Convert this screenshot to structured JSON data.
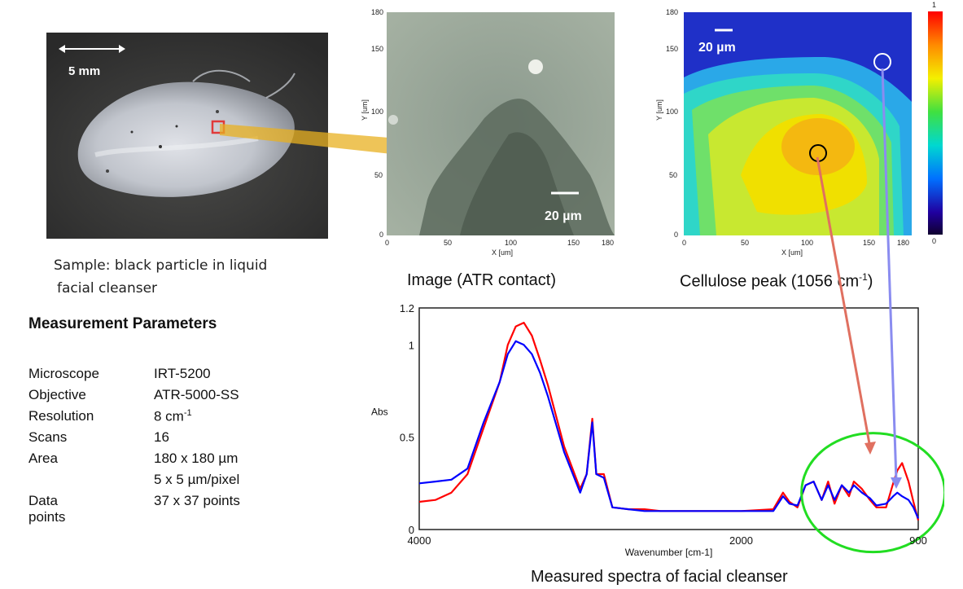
{
  "photo": {
    "scale_label": "5 mm",
    "caption_line1": "Sample: black particle in liquid",
    "caption_line2": "facial cleanser"
  },
  "atr_image": {
    "caption": "Image (ATR contact)",
    "scale_label": "20 µm",
    "x_label": "X [um]",
    "y_label": "Y [um]",
    "x_ticks": [
      "0",
      "50",
      "100",
      "150",
      "180"
    ],
    "y_ticks": [
      "0",
      "50",
      "100",
      "150",
      "180"
    ]
  },
  "cellulose_map": {
    "caption_main": "Cellulose peak (1056 cm",
    "caption_sup": "-1",
    "caption_end": ")",
    "scale_label": "20 µm",
    "x_label": "X [um]",
    "y_label": "Y [um]",
    "x_ticks": [
      "0",
      "50",
      "100",
      "150",
      "180"
    ],
    "y_ticks": [
      "0",
      "50",
      "100",
      "150",
      "180"
    ],
    "colorbar_max": "1",
    "colorbar_min": "0"
  },
  "parameters": {
    "heading": "Measurement Parameters",
    "rows": [
      {
        "name": "Microscope",
        "value": "IRT-5200"
      },
      {
        "name": "Objective",
        "value": "ATR-5000-SS"
      },
      {
        "name": "Resolution",
        "value": "8 cm",
        "sup": "-1"
      },
      {
        "name": "Scans",
        "value": "16"
      },
      {
        "name": "Area",
        "value": "180 x 180 µm"
      },
      {
        "name": "",
        "value": "5 x 5 µm/pixel"
      },
      {
        "name": "Data points",
        "value": "37 x 37 points"
      }
    ]
  },
  "spectrum": {
    "caption": "Measured spectra of  facial cleanser",
    "colors": {
      "red_series": "#ff0000",
      "blue_series": "#0000ff",
      "highlight": "#22dd22"
    },
    "chart_data": {
      "type": "line",
      "xlabel": "Wavenumber [cm-1]",
      "ylabel": "Abs",
      "x_reversed": true,
      "xlim": [
        4000,
        900
      ],
      "ylim": [
        0,
        1.2
      ],
      "x_ticks": [
        "4000",
        "2000",
        "900"
      ],
      "y_ticks": [
        "0",
        "0.5",
        "1",
        "1.2"
      ],
      "series": [
        {
          "x": [
            4000,
            3900,
            3800,
            3700,
            3600,
            3500,
            3450,
            3400,
            3350,
            3300,
            3250,
            3200,
            3100,
            3000,
            2960,
            2925,
            2900,
            2853,
            2800,
            2700,
            2600,
            2500,
            2400,
            2200,
            2000,
            1800,
            1740,
            1700,
            1650,
            1600,
            1550,
            1500,
            1460,
            1420,
            1375,
            1330,
            1300,
            1250,
            1200,
            1160,
            1100,
            1056,
            1030,
            1000,
            960,
            930,
            900
          ],
          "y": [
            0.15,
            0.16,
            0.2,
            0.3,
            0.55,
            0.8,
            1.0,
            1.1,
            1.12,
            1.05,
            0.92,
            0.78,
            0.45,
            0.22,
            0.3,
            0.6,
            0.3,
            0.3,
            0.12,
            0.11,
            0.11,
            0.1,
            0.1,
            0.1,
            0.1,
            0.11,
            0.2,
            0.15,
            0.12,
            0.24,
            0.26,
            0.16,
            0.26,
            0.14,
            0.24,
            0.18,
            0.26,
            0.22,
            0.16,
            0.12,
            0.12,
            0.25,
            0.32,
            0.36,
            0.26,
            0.15,
            0.05
          ]
        },
        {
          "x": [
            4000,
            3900,
            3800,
            3700,
            3600,
            3500,
            3450,
            3400,
            3350,
            3300,
            3250,
            3200,
            3100,
            3000,
            2960,
            2925,
            2900,
            2853,
            2800,
            2700,
            2600,
            2500,
            2400,
            2200,
            2000,
            1800,
            1740,
            1700,
            1650,
            1600,
            1550,
            1500,
            1460,
            1420,
            1375,
            1330,
            1300,
            1250,
            1200,
            1160,
            1100,
            1056,
            1030,
            1000,
            960,
            930,
            900
          ],
          "y": [
            0.25,
            0.26,
            0.27,
            0.33,
            0.58,
            0.8,
            0.95,
            1.02,
            1.0,
            0.95,
            0.85,
            0.72,
            0.42,
            0.2,
            0.3,
            0.58,
            0.3,
            0.28,
            0.12,
            0.11,
            0.1,
            0.1,
            0.1,
            0.1,
            0.1,
            0.1,
            0.18,
            0.14,
            0.13,
            0.24,
            0.26,
            0.16,
            0.24,
            0.16,
            0.24,
            0.2,
            0.24,
            0.2,
            0.17,
            0.13,
            0.14,
            0.18,
            0.2,
            0.18,
            0.16,
            0.12,
            0.06
          ]
        }
      ]
    }
  }
}
